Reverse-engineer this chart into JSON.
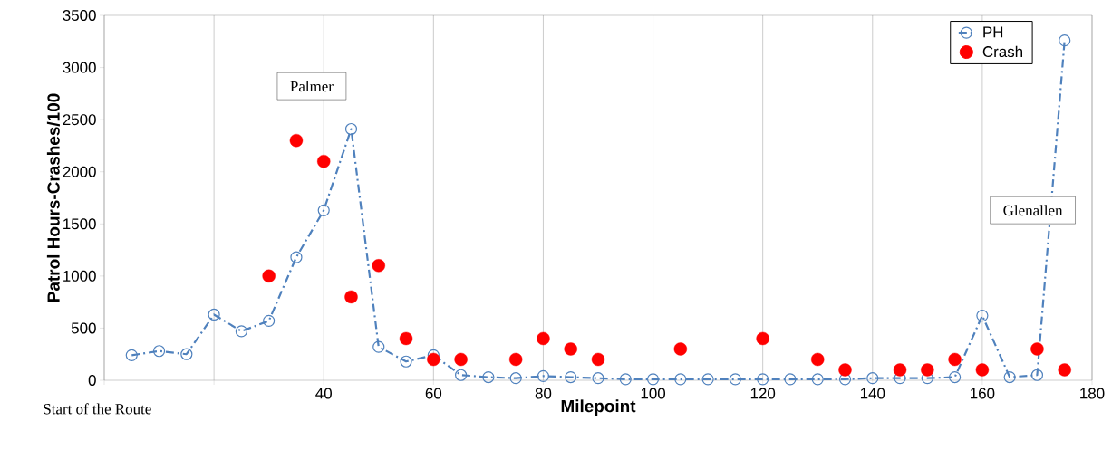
{
  "chart_data": {
    "type": "line",
    "xlabel": "Milepoint",
    "ylabel": "Patrol Hours-Crashes/100",
    "xlim": [
      0,
      180
    ],
    "ylim": [
      0,
      3500
    ],
    "xticks": [
      {
        "value": 0,
        "label": null
      },
      {
        "value": 20,
        "label": null
      },
      40,
      60,
      80,
      100,
      120,
      140,
      160,
      180
    ],
    "yticks": [
      0,
      500,
      1000,
      1500,
      2000,
      2500,
      3000,
      3500
    ],
    "grid": "x",
    "legend": "top right",
    "series": [
      {
        "name": "PH",
        "color": "#4f81bd",
        "marker": "circle",
        "line_style": "dashed",
        "x": [
          5,
          10,
          15,
          20,
          25,
          30,
          35,
          40,
          45,
          50,
          55,
          60,
          65,
          70,
          75,
          80,
          85,
          90,
          95,
          100,
          105,
          110,
          115,
          120,
          125,
          130,
          135,
          140,
          145,
          150,
          155,
          160,
          165,
          170,
          175
        ],
        "values": [
          240,
          280,
          250,
          630,
          470,
          570,
          1180,
          1630,
          2410,
          320,
          180,
          240,
          50,
          30,
          20,
          40,
          30,
          20,
          10,
          10,
          10,
          10,
          10,
          10,
          10,
          10,
          10,
          20,
          20,
          20,
          30,
          620,
          30,
          50,
          3260
        ]
      },
      {
        "name": "Crash",
        "type": "scatter",
        "color": "#ff0000",
        "marker": "circle",
        "x": [
          30,
          35,
          40,
          45,
          50,
          55,
          60,
          65,
          75,
          80,
          85,
          90,
          105,
          120,
          130,
          135,
          145,
          150,
          155,
          160,
          170,
          175
        ],
        "values": [
          1000,
          2300,
          2100,
          800,
          1100,
          400,
          200,
          200,
          200,
          400,
          300,
          200,
          300,
          400,
          200,
          100,
          100,
          100,
          200,
          100,
          300,
          100
        ]
      }
    ],
    "annotations": [
      "Palmer",
      "Glenallen",
      "Start of the Route"
    ]
  }
}
